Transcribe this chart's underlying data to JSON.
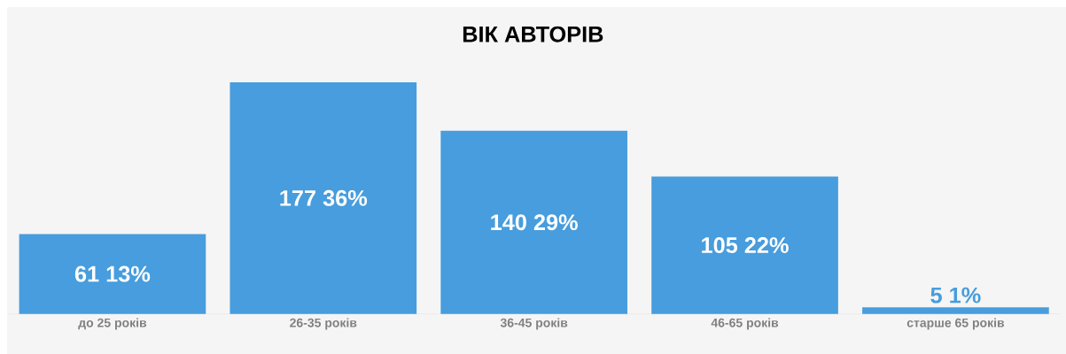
{
  "chart_data": {
    "type": "bar",
    "title": "ВІК АВТОРІВ",
    "categories": [
      "до 25 років",
      "26-35 років",
      "36-45 років",
      "46-65 років",
      "старше 65 років"
    ],
    "values": [
      61,
      177,
      140,
      105,
      5
    ],
    "value_labels": [
      "61 13%",
      "177 36%",
      "140 29%",
      "105 22%",
      "5 1%"
    ],
    "color": "#479ddd"
  }
}
